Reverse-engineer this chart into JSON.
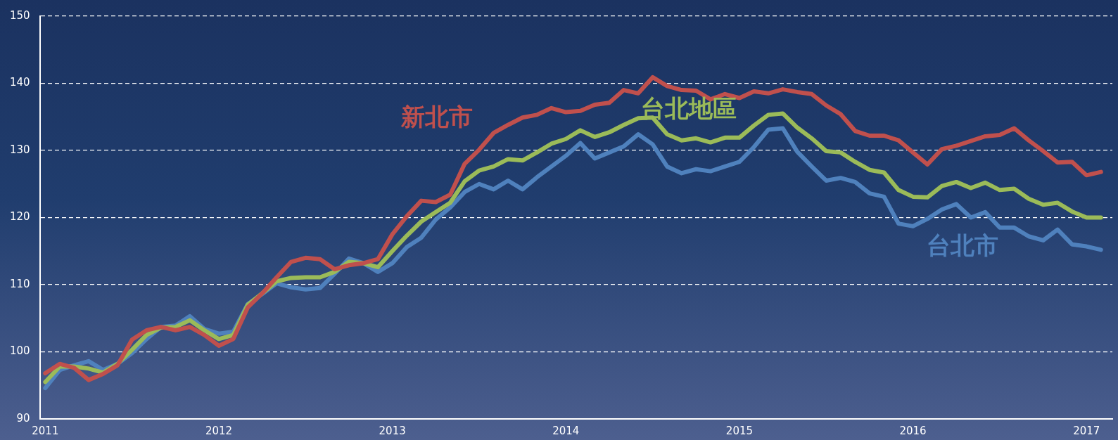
{
  "chart_data": {
    "type": "line",
    "x": [
      "2011-01",
      "2011-02",
      "2011-03",
      "2011-04",
      "2011-05",
      "2011-06",
      "2011-07",
      "2011-08",
      "2011-09",
      "2011-10",
      "2011-11",
      "2011-12",
      "2012-01",
      "2012-02",
      "2012-03",
      "2012-04",
      "2012-05",
      "2012-06",
      "2012-07",
      "2012-08",
      "2012-09",
      "2012-10",
      "2012-11",
      "2012-12",
      "2013-01",
      "2013-02",
      "2013-03",
      "2013-04",
      "2013-05",
      "2013-06",
      "2013-07",
      "2013-08",
      "2013-09",
      "2013-10",
      "2013-11",
      "2013-12",
      "2014-01",
      "2014-02",
      "2014-03",
      "2014-04",
      "2014-05",
      "2014-06",
      "2014-07",
      "2014-08",
      "2014-09",
      "2014-10",
      "2014-11",
      "2014-12",
      "2015-01",
      "2015-02",
      "2015-03",
      "2015-04",
      "2015-05",
      "2015-06",
      "2015-07",
      "2015-08",
      "2015-09",
      "2015-10",
      "2015-11",
      "2015-12",
      "2016-01",
      "2016-02",
      "2016-03",
      "2016-04",
      "2016-05",
      "2016-06",
      "2016-07",
      "2016-08",
      "2016-09",
      "2016-10",
      "2016-11",
      "2016-12",
      "2017-01",
      "2017-02"
    ],
    "series": [
      {
        "name": "新北市",
        "color": "#c0504d",
        "values": [
          96.8,
          98.2,
          97.6,
          95.8,
          96.7,
          98.0,
          101.8,
          103.2,
          103.7,
          103.2,
          103.7,
          102.5,
          100.9,
          101.9,
          106.6,
          108.7,
          111.1,
          113.4,
          114.0,
          113.8,
          112.3,
          112.9,
          113.2,
          113.8,
          117.5,
          120.2,
          122.5,
          122.3,
          123.4,
          128.0,
          130.1,
          132.6,
          133.8,
          134.9,
          135.3,
          136.3,
          135.7,
          135.9,
          136.8,
          137.1,
          139.0,
          138.5,
          140.9,
          139.6,
          139.0,
          138.9,
          137.6,
          138.4,
          137.8,
          138.8,
          138.5,
          139.1,
          138.7,
          138.4,
          136.7,
          135.4,
          132.9,
          132.2,
          132.2,
          131.5,
          129.7,
          127.9,
          130.2,
          130.7,
          131.4,
          132.1,
          132.3,
          133.3,
          131.5,
          129.9,
          128.2,
          128.3,
          126.3,
          126.8
        ]
      },
      {
        "name": "台北地區",
        "color": "#9bbb59",
        "values": [
          95.5,
          97.8,
          97.8,
          97.5,
          96.9,
          98.2,
          100.3,
          102.5,
          103.6,
          103.7,
          104.7,
          103.2,
          101.9,
          102.5,
          107.0,
          108.7,
          110.5,
          111.0,
          111.1,
          111.1,
          111.9,
          113.4,
          113.2,
          112.6,
          115.0,
          117.3,
          119.4,
          120.8,
          122.2,
          125.4,
          127.0,
          127.6,
          128.7,
          128.5,
          129.7,
          131.0,
          131.7,
          133.0,
          132.0,
          132.7,
          133.8,
          134.8,
          134.9,
          132.4,
          131.5,
          131.8,
          131.2,
          131.9,
          131.9,
          133.7,
          135.3,
          135.5,
          133.4,
          131.8,
          129.9,
          129.7,
          128.3,
          127.1,
          126.7,
          124.1,
          123.1,
          123.0,
          124.7,
          125.3,
          124.4,
          125.2,
          124.1,
          124.3,
          122.8,
          121.9,
          122.2,
          120.9,
          120.0,
          120.0
        ]
      },
      {
        "name": "台北市",
        "color": "#4f81bd",
        "values": [
          94.6,
          97.3,
          98.0,
          98.6,
          97.3,
          98.2,
          99.8,
          101.9,
          103.7,
          103.9,
          105.3,
          103.4,
          102.7,
          103.0,
          107.1,
          108.6,
          110.2,
          109.6,
          109.3,
          109.5,
          111.6,
          113.9,
          113.2,
          111.9,
          113.2,
          115.6,
          117.0,
          119.7,
          121.5,
          123.8,
          125.0,
          124.2,
          125.5,
          124.2,
          126.0,
          127.6,
          129.2,
          131.1,
          128.8,
          129.7,
          130.6,
          132.4,
          130.9,
          127.6,
          126.6,
          127.2,
          126.9,
          127.6,
          128.3,
          130.5,
          133.1,
          133.3,
          129.8,
          127.6,
          125.5,
          125.9,
          125.3,
          123.6,
          123.1,
          119.1,
          118.7,
          119.8,
          121.2,
          122.0,
          120.0,
          120.8,
          118.5,
          118.5,
          117.2,
          116.6,
          118.2,
          116.0,
          115.7,
          115.2
        ]
      }
    ],
    "xlim": [
      "2010-12-20",
      "2017-02-25"
    ],
    "xticks": [
      "2011",
      "2012",
      "2013",
      "2014",
      "2015",
      "2016",
      "2017"
    ],
    "ylim": [
      90,
      150
    ],
    "yticks": [
      90,
      100,
      110,
      120,
      130,
      140,
      150
    ],
    "grid": "y",
    "legend": false,
    "marker": "none",
    "line_style": "solid"
  }
}
